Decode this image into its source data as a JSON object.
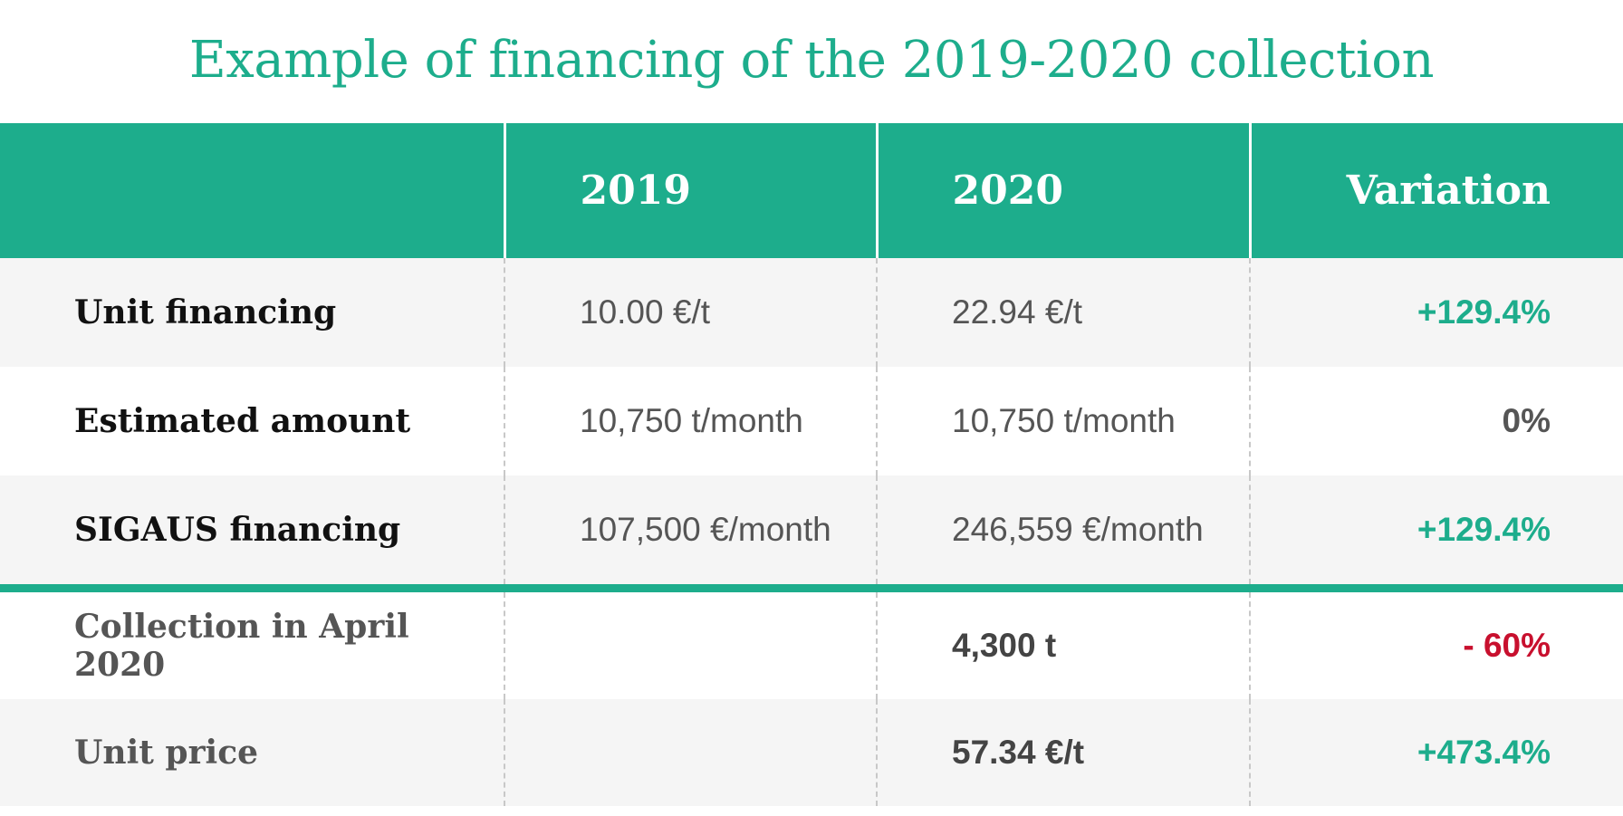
{
  "title": "Example of financing of the 2019-2020 collection",
  "colors": {
    "accent": "#1dad8c",
    "negative": "#c8102e",
    "neutral": "#555555"
  },
  "chart_data": {
    "type": "table",
    "columns": [
      "",
      "2019",
      "2020",
      "Variation"
    ],
    "rows": [
      {
        "label": "Unit financing",
        "v2019": "10.00 €/t",
        "v2020": "22.94 €/t",
        "variation": "+129.4%"
      },
      {
        "label": "Estimated amount",
        "v2019": "10,750 t/month",
        "v2020": "10,750 t/month",
        "variation": "0%"
      },
      {
        "label": "SIGAUS financing",
        "v2019": "107,500 €/month",
        "v2020": "246,559 €/month",
        "variation": "+129.4%"
      },
      {
        "label": "Collection in April 2020",
        "v2019": "",
        "v2020": "4,300 t",
        "variation": "- 60%"
      },
      {
        "label": "Unit price",
        "v2019": "",
        "v2020": "57.34 €/t",
        "variation": "+473.4%"
      }
    ]
  }
}
